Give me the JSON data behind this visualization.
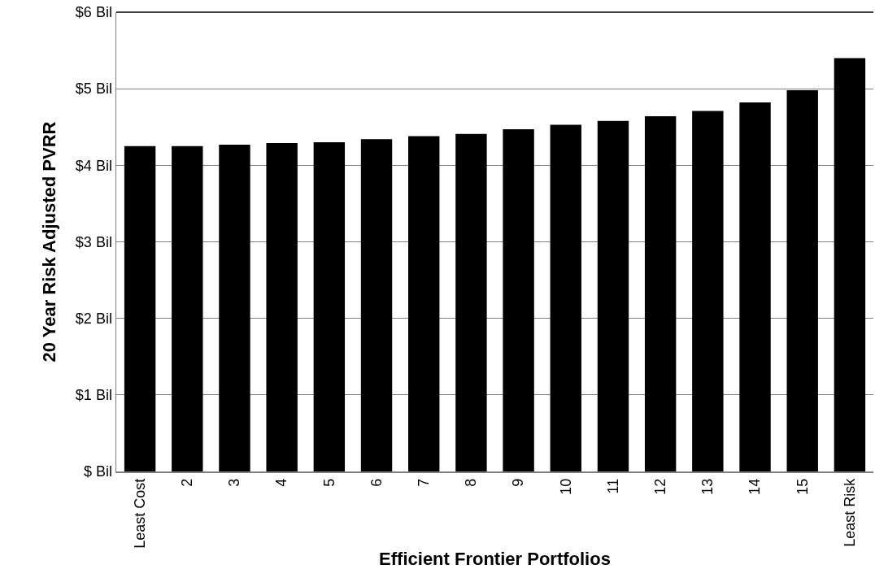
{
  "chart_data": {
    "type": "bar",
    "xlabel": "Efficient Frontier Portfolios",
    "ylabel": "20 Year Risk Adjusted PVRR",
    "categories": [
      "Least Cost",
      "2",
      "3",
      "4",
      "5",
      "6",
      "7",
      "8",
      "9",
      "10",
      "11",
      "12",
      "13",
      "14",
      "15",
      "Least Risk"
    ],
    "values": [
      4.25,
      4.25,
      4.27,
      4.29,
      4.3,
      4.34,
      4.38,
      4.41,
      4.47,
      4.53,
      4.58,
      4.64,
      4.71,
      4.82,
      4.98,
      5.4
    ],
    "color": "#000000",
    "ylim": [
      0,
      6
    ],
    "yticks": [
      {
        "value": 0,
        "label": "$ Bil"
      },
      {
        "value": 1,
        "label": "$1 Bil"
      },
      {
        "value": 2,
        "label": "$2 Bil"
      },
      {
        "value": 3,
        "label": "$3 Bil"
      },
      {
        "value": 4,
        "label": "$4 Bil"
      },
      {
        "value": 5,
        "label": "$5 Bil"
      },
      {
        "value": 6,
        "label": "$6 Bil"
      }
    ],
    "grid": "y"
  }
}
